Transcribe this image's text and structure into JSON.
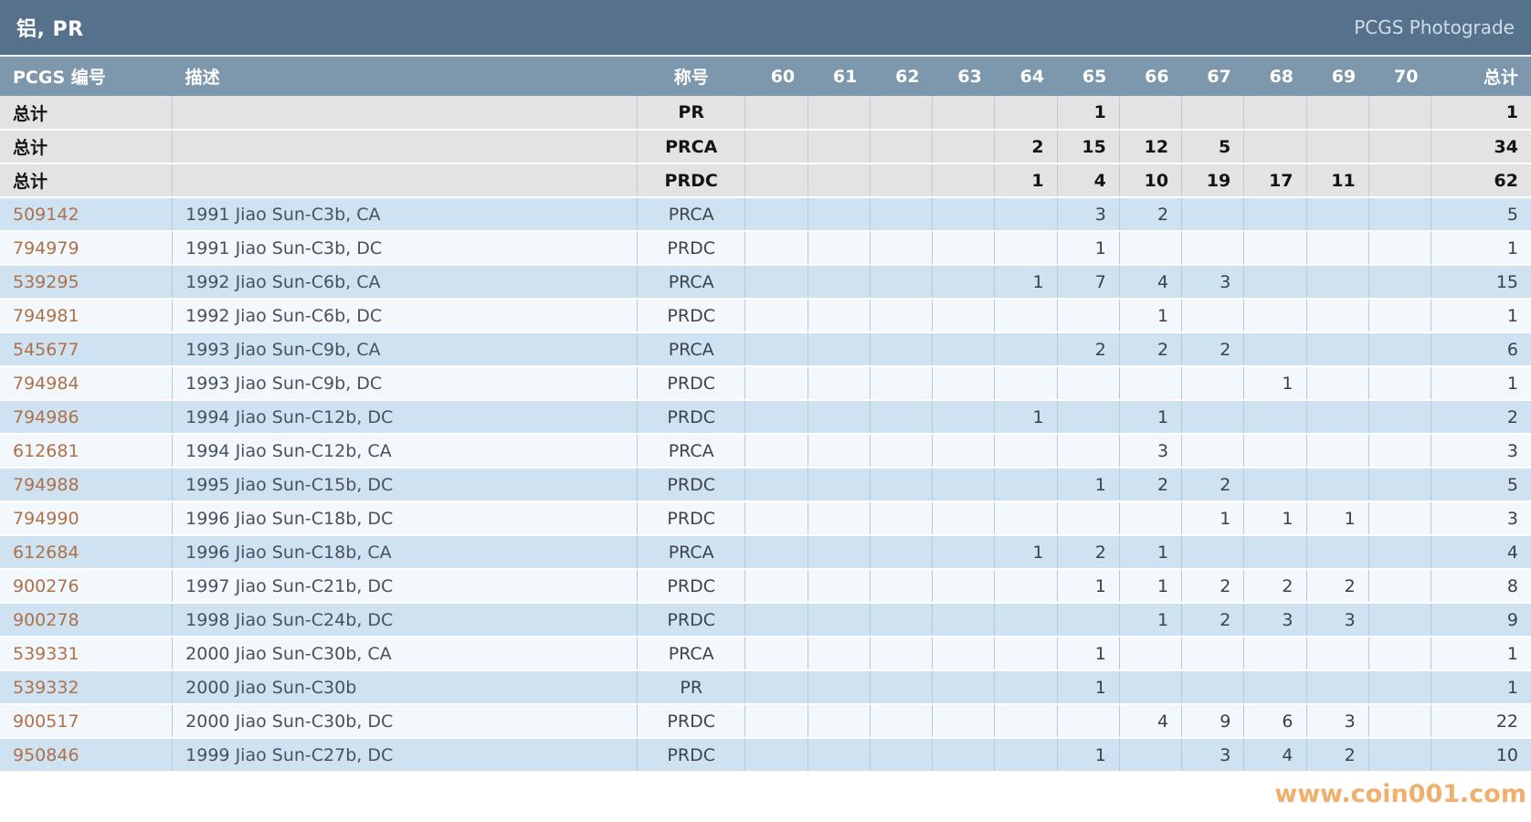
{
  "title_bar": {
    "title": "铝, PR",
    "brand": "PCGS Photograde"
  },
  "table": {
    "columns": {
      "pcgs_number": "PCGS 编号",
      "description": "描述",
      "designation": "称号",
      "total": "总计"
    },
    "grade_labels": [
      "60",
      "61",
      "62",
      "63",
      "64",
      "65",
      "66",
      "67",
      "68",
      "69",
      "70"
    ],
    "summary_label": "总计",
    "summary_rows": [
      {
        "designation": "PR",
        "counts": [
          "",
          "",
          "",
          "",
          "",
          1,
          "",
          "",
          "",
          "",
          ""
        ],
        "total": 1
      },
      {
        "designation": "PRCA",
        "counts": [
          "",
          "",
          "",
          "",
          2,
          15,
          12,
          5,
          "",
          "",
          ""
        ],
        "total": 34
      },
      {
        "designation": "PRDC",
        "counts": [
          "",
          "",
          "",
          "",
          1,
          4,
          10,
          19,
          17,
          11,
          ""
        ],
        "total": 62
      }
    ],
    "rows": [
      {
        "pcgs_number": "509142",
        "description": "1991 Jiao Sun-C3b, CA",
        "designation": "PRCA",
        "counts": [
          "",
          "",
          "",
          "",
          "",
          3,
          2,
          "",
          "",
          "",
          ""
        ],
        "total": 5
      },
      {
        "pcgs_number": "794979",
        "description": "1991 Jiao Sun-C3b, DC",
        "designation": "PRDC",
        "counts": [
          "",
          "",
          "",
          "",
          "",
          1,
          "",
          "",
          "",
          "",
          ""
        ],
        "total": 1
      },
      {
        "pcgs_number": "539295",
        "description": "1992 Jiao Sun-C6b, CA",
        "designation": "PRCA",
        "counts": [
          "",
          "",
          "",
          "",
          1,
          7,
          4,
          3,
          "",
          "",
          ""
        ],
        "total": 15
      },
      {
        "pcgs_number": "794981",
        "description": "1992 Jiao Sun-C6b, DC",
        "designation": "PRDC",
        "counts": [
          "",
          "",
          "",
          "",
          "",
          "",
          1,
          "",
          "",
          "",
          ""
        ],
        "total": 1
      },
      {
        "pcgs_number": "545677",
        "description": "1993 Jiao Sun-C9b, CA",
        "designation": "PRCA",
        "counts": [
          "",
          "",
          "",
          "",
          "",
          2,
          2,
          2,
          "",
          "",
          ""
        ],
        "total": 6
      },
      {
        "pcgs_number": "794984",
        "description": "1993 Jiao Sun-C9b, DC",
        "designation": "PRDC",
        "counts": [
          "",
          "",
          "",
          "",
          "",
          "",
          "",
          "",
          1,
          "",
          ""
        ],
        "total": 1
      },
      {
        "pcgs_number": "794986",
        "description": "1994 Jiao Sun-C12b, DC",
        "designation": "PRDC",
        "counts": [
          "",
          "",
          "",
          "",
          1,
          "",
          1,
          "",
          "",
          "",
          ""
        ],
        "total": 2
      },
      {
        "pcgs_number": "612681",
        "description": "1994 Jiao Sun-C12b, CA",
        "designation": "PRCA",
        "counts": [
          "",
          "",
          "",
          "",
          "",
          "",
          3,
          "",
          "",
          "",
          ""
        ],
        "total": 3
      },
      {
        "pcgs_number": "794988",
        "description": "1995 Jiao Sun-C15b, DC",
        "designation": "PRDC",
        "counts": [
          "",
          "",
          "",
          "",
          "",
          1,
          2,
          2,
          "",
          "",
          ""
        ],
        "total": 5
      },
      {
        "pcgs_number": "794990",
        "description": "1996 Jiao Sun-C18b, DC",
        "designation": "PRDC",
        "counts": [
          "",
          "",
          "",
          "",
          "",
          "",
          "",
          1,
          1,
          1,
          ""
        ],
        "total": 3
      },
      {
        "pcgs_number": "612684",
        "description": "1996 Jiao Sun-C18b, CA",
        "designation": "PRCA",
        "counts": [
          "",
          "",
          "",
          "",
          1,
          2,
          1,
          "",
          "",
          "",
          ""
        ],
        "total": 4
      },
      {
        "pcgs_number": "900276",
        "description": "1997 Jiao Sun-C21b, DC",
        "designation": "PRDC",
        "counts": [
          "",
          "",
          "",
          "",
          "",
          1,
          1,
          2,
          2,
          2,
          ""
        ],
        "total": 8
      },
      {
        "pcgs_number": "900278",
        "description": "1998 Jiao Sun-C24b, DC",
        "designation": "PRDC",
        "counts": [
          "",
          "",
          "",
          "",
          "",
          "",
          1,
          2,
          3,
          3,
          ""
        ],
        "total": 9
      },
      {
        "pcgs_number": "539331",
        "description": "2000 Jiao Sun-C30b, CA",
        "designation": "PRCA",
        "counts": [
          "",
          "",
          "",
          "",
          "",
          1,
          "",
          "",
          "",
          "",
          ""
        ],
        "total": 1
      },
      {
        "pcgs_number": "539332",
        "description": "2000 Jiao Sun-C30b",
        "designation": "PR",
        "counts": [
          "",
          "",
          "",
          "",
          "",
          1,
          "",
          "",
          "",
          "",
          ""
        ],
        "total": 1
      },
      {
        "pcgs_number": "900517",
        "description": "2000 Jiao Sun-C30b, DC",
        "designation": "PRDC",
        "counts": [
          "",
          "",
          "",
          "",
          "",
          "",
          4,
          9,
          6,
          3,
          ""
        ],
        "total": 22
      },
      {
        "pcgs_number": "950846",
        "description": "1999 Jiao Sun-C27b, DC",
        "designation": "PRDC",
        "counts": [
          "",
          "",
          "",
          "",
          "",
          1,
          "",
          3,
          4,
          2,
          ""
        ],
        "total": 10
      }
    ]
  },
  "watermark": {
    "text": "www.coin001.com"
  },
  "colors": {
    "titlebar_bg": "#55718c",
    "header_bg": "#7d97ac",
    "summary_row_bg": "#e3e3e3",
    "row_blue": "#cee2f2",
    "row_light": "#f3f8fc",
    "pcgs_number_text": "#ae7149",
    "watermark_text": "#ed9f4e"
  }
}
